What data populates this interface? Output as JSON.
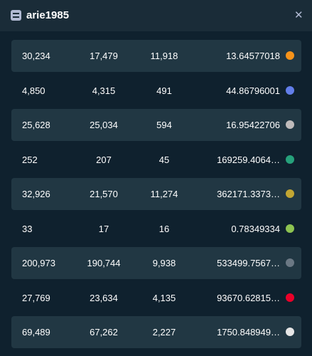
{
  "header": {
    "title": "arie1985",
    "close": "✕"
  },
  "table": {
    "rows": [
      [
        "30,234",
        "17,479",
        "11,918",
        "13.64577018"
      ],
      [
        "4,850",
        "4,315",
        "491",
        "44.86796001"
      ],
      [
        "25,628",
        "25,034",
        "594",
        "16.95422706"
      ],
      [
        "252",
        "207",
        "45",
        "169259.4064…"
      ],
      [
        "32,926",
        "21,570",
        "11,274",
        "362171.3373…"
      ],
      [
        "33",
        "17",
        "16",
        "0.78349334"
      ],
      [
        "200,973",
        "190,744",
        "9,938",
        "533499.7567…"
      ],
      [
        "27,769",
        "23,634",
        "4,135",
        "93670.62815…"
      ],
      [
        "69,489",
        "67,262",
        "2,227",
        "1750.848949…"
      ]
    ]
  }
}
